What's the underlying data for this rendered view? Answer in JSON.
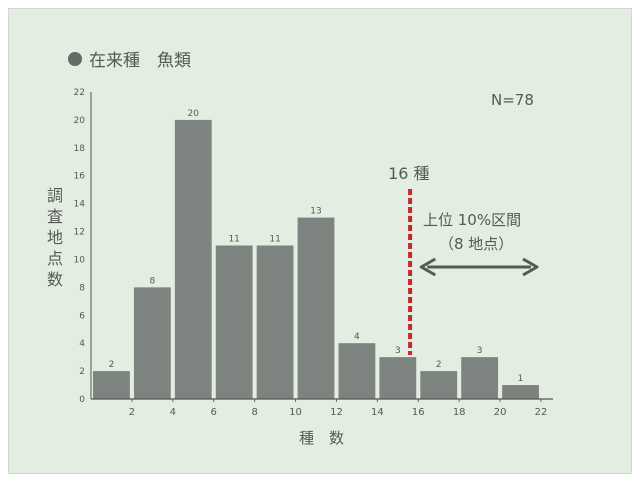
{
  "chart_data": {
    "type": "bar",
    "title": "在来種　魚類",
    "legend_marker_color": "#646b66",
    "annotation_n": "N=78",
    "ylabel": "調査地点数",
    "xlabel": "種　数",
    "ylim": [
      0,
      22
    ],
    "yticks": [
      0,
      2,
      4,
      6,
      8,
      10,
      12,
      14,
      16,
      18,
      20,
      22
    ],
    "xlim": [
      0,
      22
    ],
    "xticks": [
      2,
      4,
      6,
      8,
      10,
      12,
      14,
      16,
      18,
      20,
      22
    ],
    "bar_width": 1.8,
    "bars": [
      {
        "x": 1,
        "value": 2,
        "label": "2"
      },
      {
        "x": 3,
        "value": 8,
        "label": "8"
      },
      {
        "x": 5,
        "value": 20,
        "label": "20"
      },
      {
        "x": 7,
        "value": 11,
        "label": "11"
      },
      {
        "x": 9,
        "value": 11,
        "label": "11"
      },
      {
        "x": 11,
        "value": 13,
        "label": "13"
      },
      {
        "x": 13,
        "value": 4,
        "label": "4"
      },
      {
        "x": 15,
        "value": 3,
        "label": "3"
      },
      {
        "x": 17,
        "value": 2,
        "label": "2"
      },
      {
        "x": 19,
        "value": 3,
        "label": "3"
      },
      {
        "x": 21,
        "value": 1,
        "label": "1"
      }
    ],
    "bar_color": "#7d837f",
    "threshold": {
      "x": 15.6,
      "label": "16 種",
      "color": "#c8262b"
    },
    "range_annotation": {
      "line1": "上位 10%区間",
      "line2": "（8 地点）",
      "x_from": 16,
      "x_to": 22
    }
  }
}
